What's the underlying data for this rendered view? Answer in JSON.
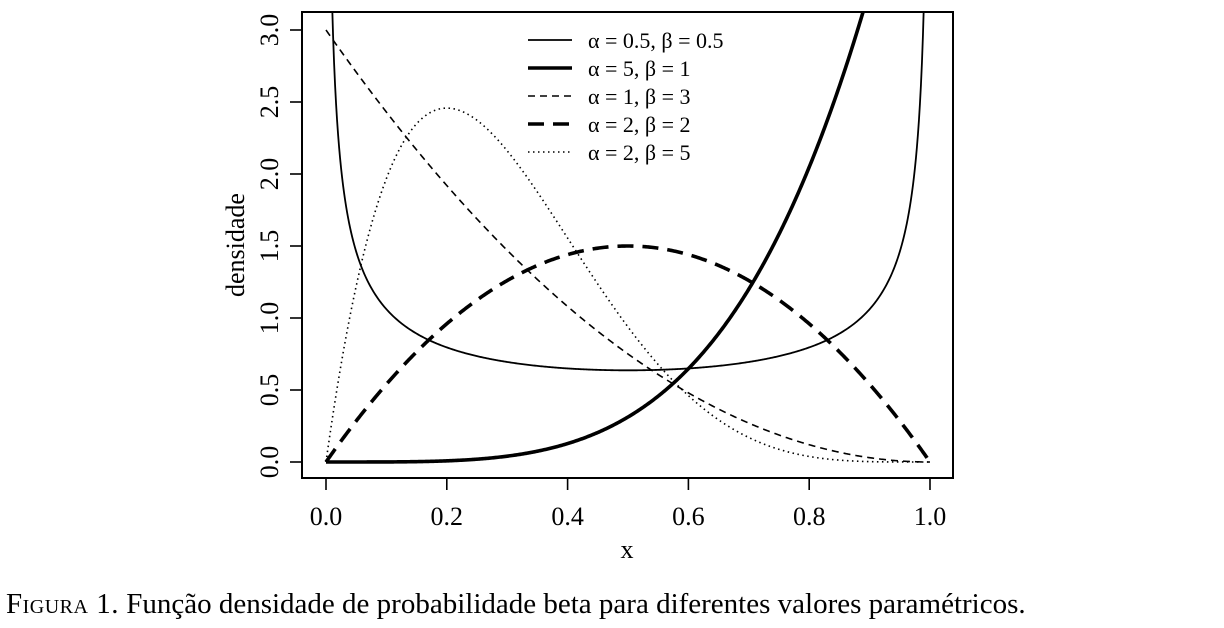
{
  "caption": {
    "label": "Figura 1.",
    "text": "Função densidade de probabilidade beta para diferentes valores paramétricos."
  },
  "chart_data": {
    "type": "line",
    "title": "",
    "xlabel": "x",
    "ylabel": "densidade",
    "xlim": [
      0,
      1
    ],
    "ylim": [
      0,
      3
    ],
    "x_ticks": [
      0.0,
      0.2,
      0.4,
      0.6,
      0.8,
      1.0
    ],
    "x_tick_labels": [
      "0.0",
      "0.2",
      "0.4",
      "0.6",
      "0.8",
      "1.0"
    ],
    "y_ticks": [
      0.0,
      0.5,
      1.0,
      1.5,
      2.0,
      2.5,
      3.0
    ],
    "y_tick_labels": [
      "0.0",
      "0.5",
      "1.0",
      "1.5",
      "2.0",
      "2.5",
      "3.0"
    ],
    "grid": false,
    "legend_position": "top-center",
    "series": [
      {
        "name": "α = 0.5, β = 0.5",
        "alpha": 0.5,
        "beta": 0.5,
        "style": "thin-solid",
        "x": [
          0.005,
          0.02,
          0.05,
          0.1,
          0.2,
          0.3,
          0.4,
          0.5,
          0.6,
          0.7,
          0.8,
          0.9,
          0.95,
          0.98,
          0.995
        ],
        "y": [
          4.5,
          2.27,
          1.46,
          1.06,
          0.8,
          0.69,
          0.65,
          0.64,
          0.65,
          0.69,
          0.8,
          1.06,
          1.46,
          2.27,
          4.5
        ]
      },
      {
        "name": "α = 5, β = 1",
        "alpha": 5,
        "beta": 1,
        "style": "thick-solid",
        "x": [
          0.0,
          0.1,
          0.2,
          0.3,
          0.4,
          0.5,
          0.6,
          0.7,
          0.8,
          0.9
        ],
        "y": [
          0.0,
          0.0005,
          0.008,
          0.041,
          0.128,
          0.3125,
          0.648,
          1.2005,
          2.048,
          3.28
        ]
      },
      {
        "name": "α = 1, β = 3",
        "alpha": 1,
        "beta": 3,
        "style": "thin-dashed",
        "x": [
          0.0,
          0.1,
          0.2,
          0.3,
          0.4,
          0.5,
          0.6,
          0.7,
          0.8,
          0.9,
          1.0
        ],
        "y": [
          3.0,
          2.43,
          1.92,
          1.47,
          1.08,
          0.75,
          0.48,
          0.27,
          0.12,
          0.03,
          0.0
        ]
      },
      {
        "name": "α = 2, β = 2",
        "alpha": 2,
        "beta": 2,
        "style": "thick-dashed",
        "x": [
          0.0,
          0.1,
          0.2,
          0.3,
          0.4,
          0.5,
          0.6,
          0.7,
          0.8,
          0.9,
          1.0
        ],
        "y": [
          0.0,
          0.54,
          0.96,
          1.26,
          1.44,
          1.5,
          1.44,
          1.26,
          0.96,
          0.54,
          0.0
        ]
      },
      {
        "name": "α = 2, β = 5",
        "alpha": 2,
        "beta": 5,
        "style": "dotted",
        "x": [
          0.0,
          0.1,
          0.2,
          0.3,
          0.4,
          0.5,
          0.6,
          0.7,
          0.8,
          0.9,
          1.0
        ],
        "y": [
          0.0,
          1.97,
          2.46,
          2.16,
          1.56,
          0.94,
          0.46,
          0.17,
          0.04,
          0.003,
          0.0
        ]
      }
    ]
  }
}
